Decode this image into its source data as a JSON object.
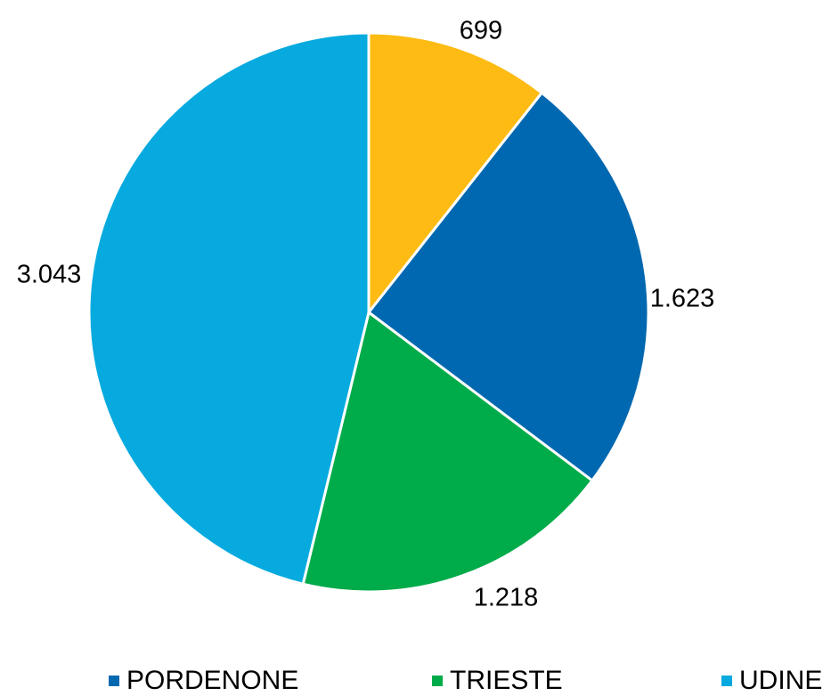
{
  "chart_data": {
    "type": "pie",
    "start_angle_deg": 0,
    "direction": "clockwise",
    "slices": [
      {
        "value": 699,
        "label": "699",
        "color": "#FDBB13"
      },
      {
        "value": 1623,
        "label": "1.623",
        "color": "#0068B0",
        "legend": "PORDENONE"
      },
      {
        "value": 1218,
        "label": "1.218",
        "color": "#00AB4A",
        "legend": "TRIESTE"
      },
      {
        "value": 3043,
        "label": "3.043",
        "color": "#06AADF",
        "legend": "UDINE"
      }
    ],
    "legend_position": "bottom"
  }
}
